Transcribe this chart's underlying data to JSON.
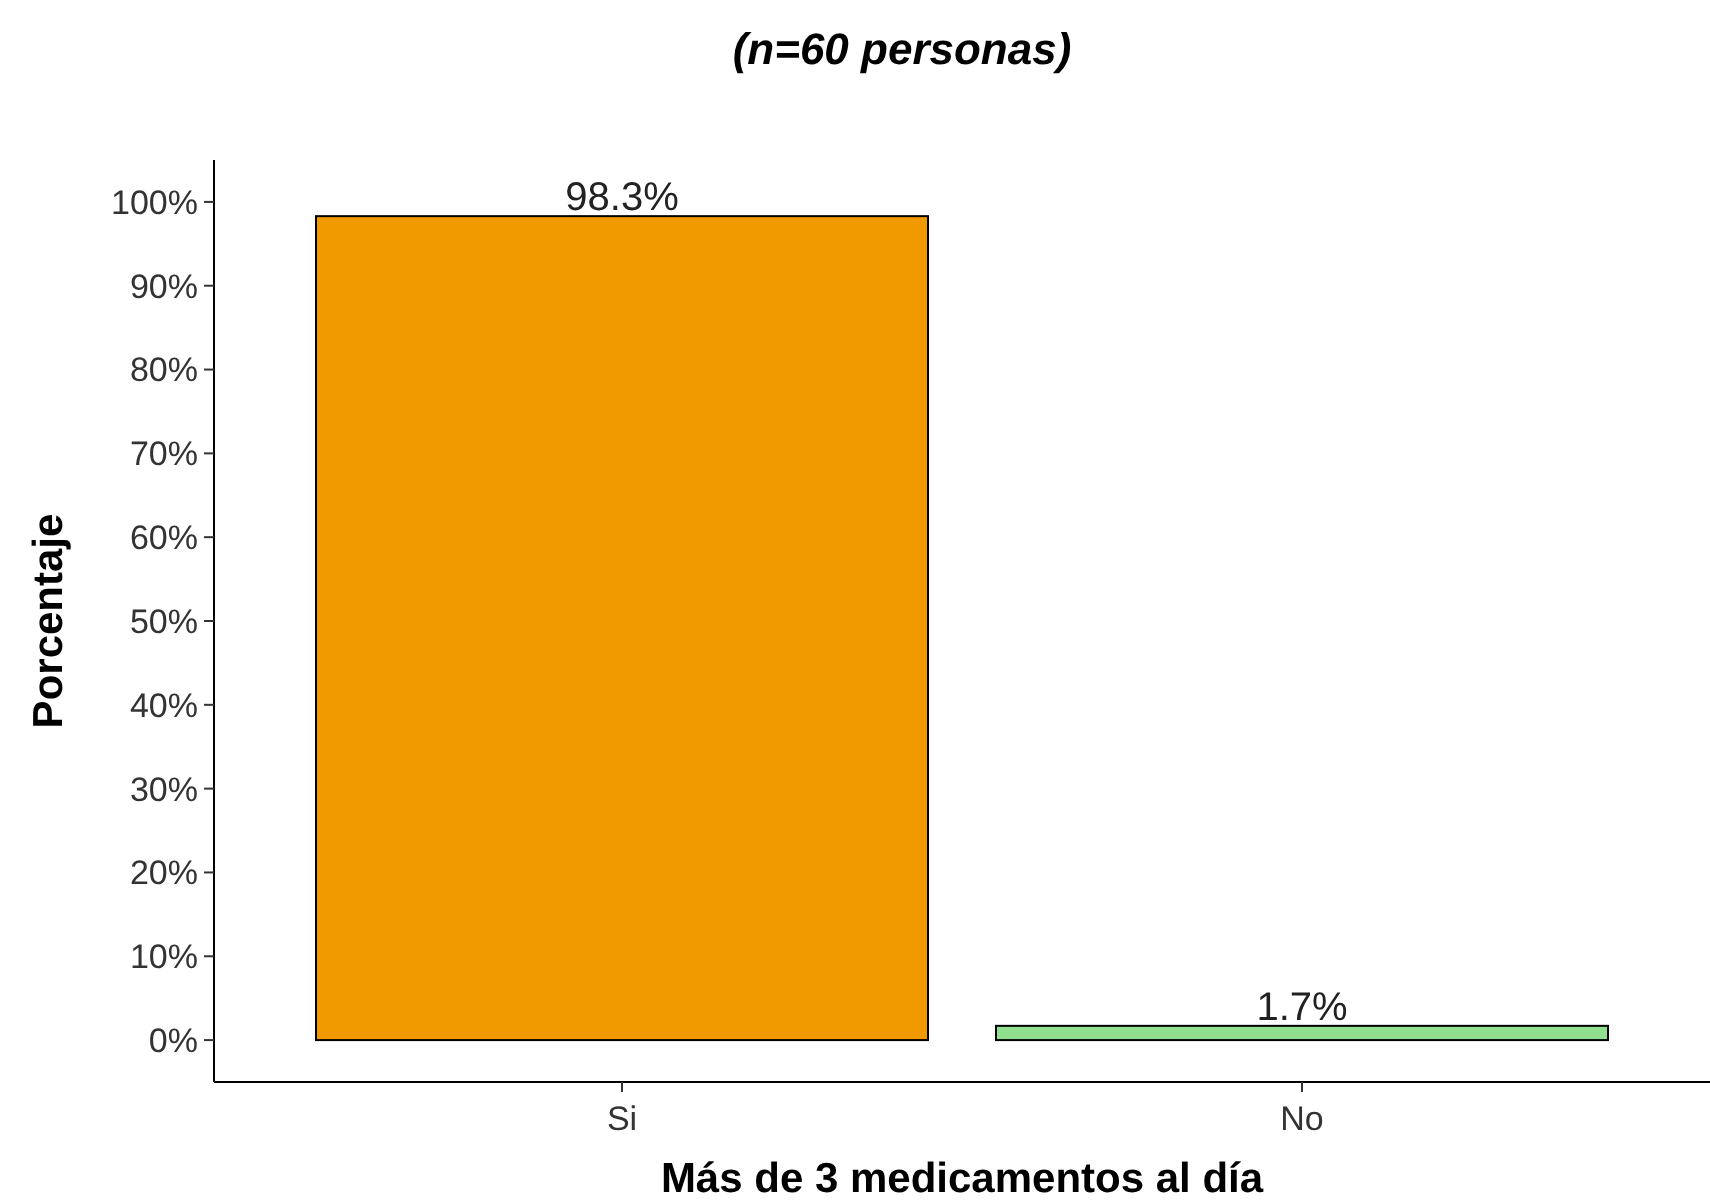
{
  "chart_data": {
    "type": "bar",
    "title": "(n=60 personas)",
    "xlabel": "Más de 3 medicamentos al día",
    "ylabel": "Porcentaje",
    "categories": [
      "Si",
      "No"
    ],
    "values": [
      98.3,
      1.7
    ],
    "colors": [
      "#f09a00",
      "#90e090"
    ],
    "value_labels": [
      "98.3%",
      "1.7%"
    ],
    "ylim": [
      -5,
      105
    ],
    "yticks": [
      {
        "value": 0,
        "label": "0%"
      },
      {
        "value": 10,
        "label": "10%"
      },
      {
        "value": 20,
        "label": "20%"
      },
      {
        "value": 30,
        "label": "30%"
      },
      {
        "value": 40,
        "label": "40%"
      },
      {
        "value": 50,
        "label": "50%"
      },
      {
        "value": 60,
        "label": "60%"
      },
      {
        "value": 70,
        "label": "70%"
      },
      {
        "value": 80,
        "label": "80%"
      },
      {
        "value": 90,
        "label": "90%"
      },
      {
        "value": 100,
        "label": "100%"
      }
    ],
    "grid": false
  }
}
